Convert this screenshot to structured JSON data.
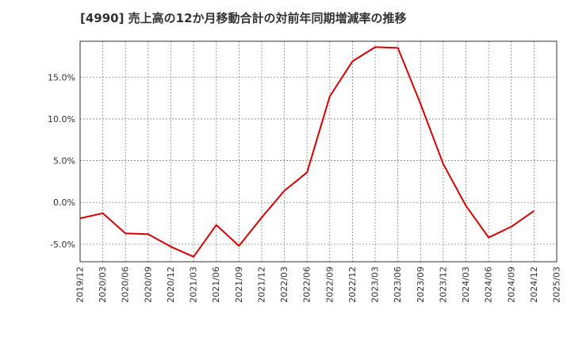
{
  "chart_data": {
    "type": "line",
    "title": "[4990]  売上高の12か月移動合計の対前年同期増減率の推移",
    "xlabel": "",
    "ylabel": "",
    "x_tick_labels": [
      "2019/12",
      "2020/03",
      "2020/06",
      "2020/09",
      "2020/12",
      "2021/03",
      "2021/06",
      "2021/09",
      "2021/12",
      "2022/03",
      "2022/06",
      "2022/09",
      "2022/12",
      "2023/03",
      "2023/06",
      "2023/09",
      "2023/12",
      "2024/03",
      "2024/06",
      "2024/09",
      "2024/12",
      "2025/03"
    ],
    "y_ticks": [
      -5.0,
      0.0,
      5.0,
      10.0,
      15.0
    ],
    "y_tick_labels": [
      "-5.0%",
      "0.0%",
      "5.0%",
      "10.0%",
      "15.0%"
    ],
    "ylim": [
      -7.1,
      19.3
    ],
    "grid": true,
    "series": [
      {
        "name": "対前年同期増減率",
        "color": "#dd0000",
        "x": [
          "2019/12",
          "2020/03",
          "2020/06",
          "2020/09",
          "2020/12",
          "2021/03",
          "2021/06",
          "2021/09",
          "2021/12",
          "2022/03",
          "2022/06",
          "2022/09",
          "2022/12",
          "2023/03",
          "2023/06",
          "2023/09",
          "2023/12",
          "2024/03",
          "2024/06",
          "2024/09",
          "2024/12"
        ],
        "values": [
          -1.9,
          -1.3,
          -3.7,
          -3.8,
          -5.3,
          -6.5,
          -2.7,
          -5.2,
          -1.8,
          1.4,
          3.6,
          12.7,
          16.9,
          18.6,
          18.5,
          11.8,
          4.6,
          -0.4,
          -4.2,
          -2.9,
          -1.0
        ]
      }
    ]
  }
}
